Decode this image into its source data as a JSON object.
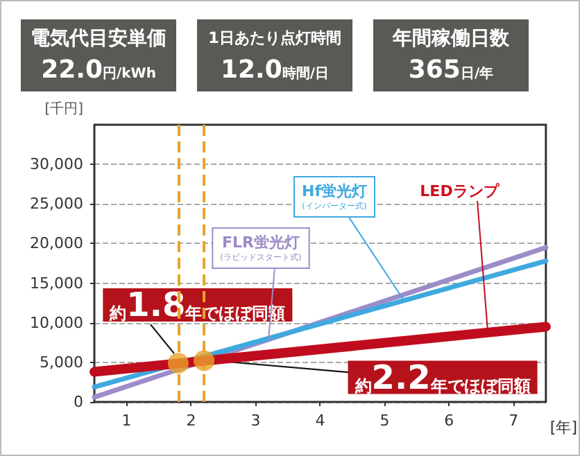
{
  "chart_data": {
    "type": "line",
    "xlabel": "[年]",
    "ylabel": "[千円]",
    "xlim": [
      0.5,
      7.5
    ],
    "xticks": [
      1,
      2,
      3,
      4,
      5,
      6,
      7
    ],
    "ylim": [
      0,
      35000
    ],
    "yticks": [
      {
        "value": 0,
        "label": "0"
      },
      {
        "value": 5000,
        "label": "5,000"
      },
      {
        "value": 10000,
        "label": "10,000"
      },
      {
        "value": 15000,
        "label": "15,000"
      },
      {
        "value": 20000,
        "label": "20,000"
      },
      {
        "value": 25000,
        "label": "25,000"
      },
      {
        "value": 30000,
        "label": "30,000"
      }
    ],
    "grid": "y",
    "legend": false,
    "marker": "none",
    "line_style": "solid",
    "series": [
      {
        "name": "FLR蛍光灯(ラピッドスタート式)",
        "color": "#9c8cc8",
        "x": [
          0.5,
          7.5
        ],
        "values": [
          600,
          19500
        ]
      },
      {
        "name": "Hf蛍光灯(インバーター式)",
        "color": "#3fa9e0",
        "x": [
          0.5,
          7.5
        ],
        "values": [
          1900,
          17800
        ]
      },
      {
        "name": "LEDランプ",
        "color": "#c00d1e",
        "x": [
          0.5,
          7.5
        ],
        "values": [
          3800,
          9500
        ]
      },
      {
        "type": "scatter",
        "marker": "circle",
        "color": "#e8a32a",
        "x": [
          1.8,
          2.2
        ],
        "values": [
          4900,
          5200
        ]
      }
    ],
    "ref_lines": [
      {
        "axis": "x",
        "value": 1.8,
        "color": "#e8a32a",
        "line_style": "dashed"
      },
      {
        "axis": "x",
        "value": 2.2,
        "color": "#e8a32a",
        "line_style": "dashed"
      }
    ],
    "annotations": [
      "電気代目安単価",
      "22.0円/kWh",
      "1日あたり点灯時間",
      "12.0時間/日",
      "年間稼働日数",
      "365日/年",
      {
        "text": "約1.8年でほぼ同額",
        "x": 1.8,
        "y": 4900
      },
      {
        "text": "約2.2年でほぼ同額",
        "x": 2.2,
        "y": 5200
      }
    ]
  }
}
